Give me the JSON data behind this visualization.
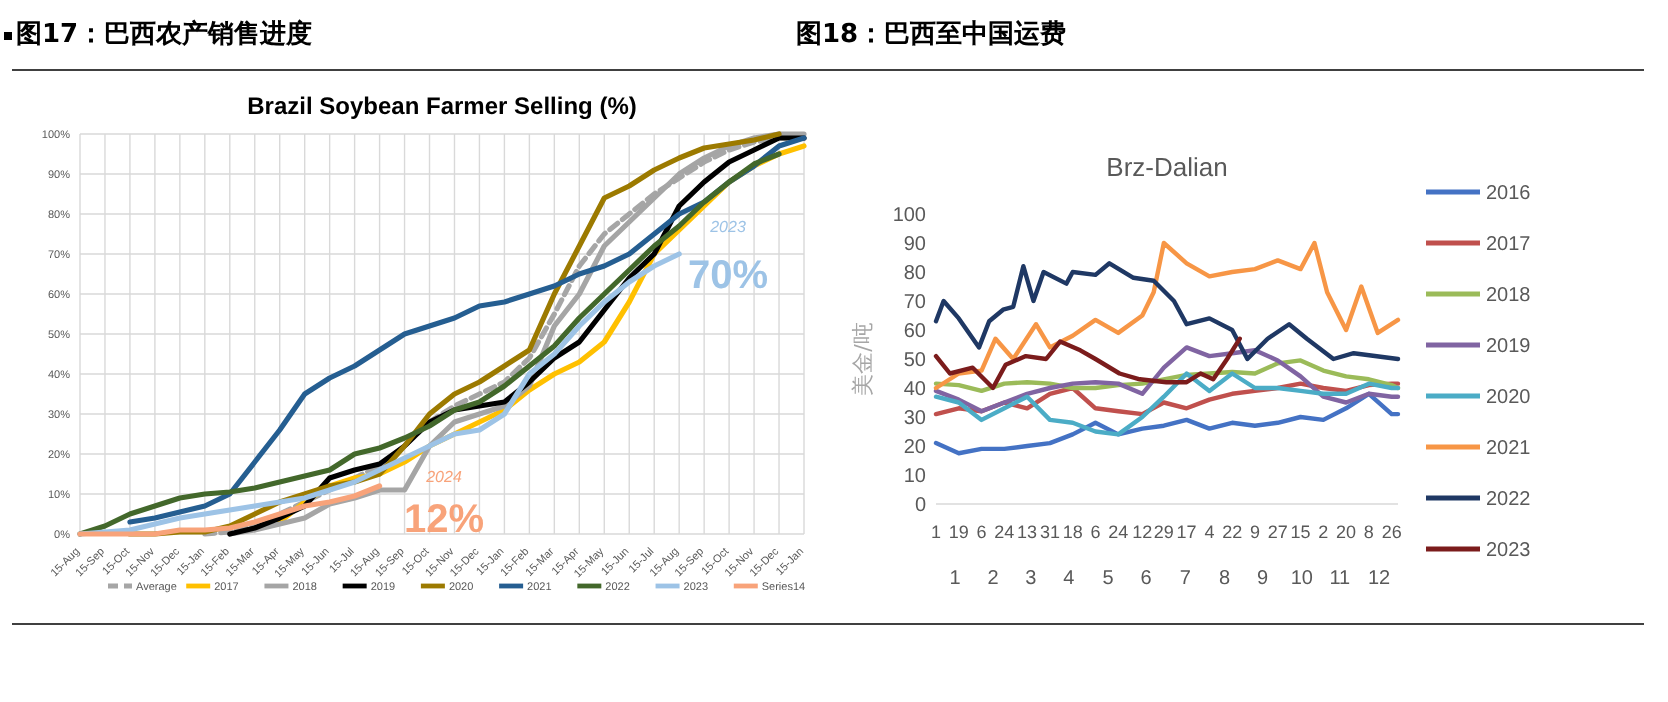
{
  "chart_data": [
    {
      "type": "line",
      "subtitle": "图17：巴西农产销售进度",
      "title": "Brazil Soybean Farmer Selling (%)",
      "categories": [
        "15-Aug",
        "15-Sep",
        "15-Oct",
        "15-Nov",
        "15-Dec",
        "15-Jan",
        "15-Feb",
        "15-Mar",
        "15-Apr",
        "15-May",
        "15-Jun",
        "15-Jul",
        "15-Aug",
        "15-Sep",
        "15-Oct",
        "15-Nov",
        "15-Dec",
        "15-Jan",
        "15-Feb",
        "15-Mar",
        "15-Apr",
        "15-May",
        "15-Jun",
        "15-Jul",
        "15-Aug",
        "15-Sep",
        "15-Oct",
        "15-Nov",
        "15-Dec",
        "15-Jan"
      ],
      "ylim": [
        0,
        100
      ],
      "yticks": [
        {
          "value": 0,
          "label": "0%"
        },
        {
          "value": 10,
          "label": "10%"
        },
        {
          "value": 20,
          "label": "20%"
        },
        {
          "value": 30,
          "label": "30%"
        },
        {
          "value": 40,
          "label": "40%"
        },
        {
          "value": 50,
          "label": "50%"
        },
        {
          "value": 60,
          "label": "60%"
        },
        {
          "value": 70,
          "label": "70%"
        },
        {
          "value": 80,
          "label": "80%"
        },
        {
          "value": 90,
          "label": "90%"
        },
        {
          "value": 100,
          "label": "100%"
        }
      ],
      "grid": true,
      "legend": "bottom",
      "series": [
        {
          "name": "Average",
          "color": "#a6a6a6",
          "line_style": "dashed",
          "values": [
            null,
            null,
            null,
            null,
            null,
            0,
            0.5,
            2,
            5,
            8,
            11,
            14,
            17,
            22,
            28,
            32,
            35,
            38,
            44,
            55,
            67,
            75,
            80,
            85,
            89,
            93,
            96,
            98,
            99,
            99
          ]
        },
        {
          "name": "2017",
          "color": "#ffc000",
          "values": [
            null,
            null,
            null,
            null,
            null,
            null,
            null,
            null,
            3,
            8,
            12,
            14,
            15,
            18,
            22,
            25,
            28,
            31,
            36,
            40,
            43,
            48,
            58,
            70,
            76,
            82,
            88,
            92,
            95,
            97
          ]
        },
        {
          "name": "2018",
          "color": "#a5a5a5",
          "values": [
            null,
            null,
            null,
            null,
            null,
            null,
            0,
            1,
            2.5,
            4,
            7.5,
            9,
            11,
            11,
            22,
            28,
            30,
            32,
            37,
            52,
            60,
            72,
            78,
            84,
            90,
            94,
            97,
            99,
            100,
            100
          ]
        },
        {
          "name": "2019",
          "color": "#000000",
          "values": [
            null,
            null,
            null,
            null,
            null,
            null,
            0,
            1.5,
            4,
            7,
            14,
            16,
            17.5,
            22,
            28,
            31,
            32,
            33,
            38,
            44,
            48,
            56,
            64,
            70,
            82,
            88,
            93,
            96,
            99,
            99
          ]
        },
        {
          "name": "2020",
          "color": "#9c7a00",
          "values": [
            null,
            null,
            0,
            0,
            0.5,
            0.5,
            2,
            5,
            8,
            10,
            12,
            13,
            15,
            22,
            30,
            35,
            38,
            42,
            46,
            60,
            72,
            84,
            87,
            91,
            94,
            96.5,
            97.5,
            98.5,
            100,
            null
          ]
        },
        {
          "name": "2021",
          "color": "#255e91",
          "values": [
            null,
            null,
            3,
            4,
            5.5,
            7,
            10,
            18,
            26,
            35,
            39,
            42,
            46,
            50,
            52,
            54,
            57,
            58,
            60,
            62,
            65,
            67,
            70,
            75,
            80,
            83,
            88,
            92,
            97,
            99
          ]
        },
        {
          "name": "2022",
          "color": "#43682b",
          "values": [
            0,
            2,
            5,
            7,
            9,
            10,
            10.5,
            11.5,
            13,
            14.5,
            16,
            20,
            21.5,
            24,
            27,
            31,
            33,
            37,
            42,
            47,
            54,
            60,
            66,
            72,
            77,
            83,
            88,
            92.5,
            95,
            null
          ]
        },
        {
          "name": "2023",
          "color": "#9dc3e6",
          "values": [
            0,
            0.5,
            1,
            2.5,
            4,
            5,
            6,
            7,
            8,
            9,
            11,
            13,
            16,
            19,
            22,
            25,
            26,
            30,
            40,
            45,
            52,
            58,
            63,
            67,
            70,
            null,
            null,
            null,
            null,
            null
          ]
        },
        {
          "name": "Series14",
          "color": "#f8a37a",
          "values": [
            0,
            0,
            0,
            0,
            1,
            1,
            1.5,
            3,
            5,
            7,
            8,
            9.5,
            12,
            null,
            null,
            null,
            null,
            null,
            null,
            null,
            null,
            null,
            null,
            null,
            null,
            null,
            null,
            null,
            null,
            null
          ]
        }
      ],
      "annotations": [
        "2023",
        "70%",
        "2024",
        "12%"
      ]
    },
    {
      "type": "line",
      "subtitle": "图18：巴西至中国运费",
      "title": "Brz-Dalian",
      "ylabel": "美金/吨",
      "xlim": [
        "--01-01",
        "--12-31"
      ],
      "ylim": [
        0,
        100
      ],
      "xticks": [
        {
          "value": "--01-01",
          "label": "1"
        },
        {
          "value": "--01-19",
          "label": "19"
        },
        {
          "value": "--02-06",
          "label": "6"
        },
        {
          "value": "--02-24",
          "label": "24"
        },
        {
          "value": "--03-13",
          "label": "13"
        },
        {
          "value": "--03-31",
          "label": "31"
        },
        {
          "value": "--04-18",
          "label": "18"
        },
        {
          "value": "--05-06",
          "label": "6"
        },
        {
          "value": "--05-24",
          "label": "24"
        },
        {
          "value": "--06-12",
          "label": "12"
        },
        {
          "value": "--06-29",
          "label": "29"
        },
        {
          "value": "--07-17",
          "label": "17"
        },
        {
          "value": "--08-04",
          "label": "4"
        },
        {
          "value": "--08-22",
          "label": "22"
        },
        {
          "value": "--09-09",
          "label": "9"
        },
        {
          "value": "--09-27",
          "label": "27"
        },
        {
          "value": "--10-15",
          "label": "15"
        },
        {
          "value": "--11-02",
          "label": "2"
        },
        {
          "value": "--11-20",
          "label": "20"
        },
        {
          "value": "--12-08",
          "label": "8"
        },
        {
          "value": "--12-26",
          "label": "26"
        }
      ],
      "x2lim": [
        "--01-01",
        "--12-31"
      ],
      "x2ticks": [
        {
          "value": "--01-16",
          "label": "1"
        },
        {
          "value": "--02-15",
          "label": "2"
        },
        {
          "value": "--03-16",
          "label": "3"
        },
        {
          "value": "--04-15",
          "label": "4"
        },
        {
          "value": "--05-16",
          "label": "5"
        },
        {
          "value": "--06-15",
          "label": "6"
        },
        {
          "value": "--07-16",
          "label": "7"
        },
        {
          "value": "--08-16",
          "label": "8"
        },
        {
          "value": "--09-15",
          "label": "9"
        },
        {
          "value": "--10-16",
          "label": "10"
        },
        {
          "value": "--11-15",
          "label": "11"
        },
        {
          "value": "--12-16",
          "label": "12"
        }
      ],
      "yticks": [
        0,
        10,
        20,
        30,
        40,
        50,
        60,
        70,
        80,
        90,
        100
      ],
      "grid": false,
      "legend": "right",
      "series": [
        {
          "name": "2016",
          "color": "#4472c4",
          "x": [
            "--01-01",
            "--01-19",
            "--02-06",
            "--02-24",
            "--03-13",
            "--03-31",
            "--04-18",
            "--05-06",
            "--05-24",
            "--06-12",
            "--06-29",
            "--07-17",
            "--08-04",
            "--08-22",
            "--09-09",
            "--09-27",
            "--10-15",
            "--11-02",
            "--11-20",
            "--12-08",
            "--12-26",
            "--12-31"
          ],
          "values": [
            21,
            17.5,
            19,
            19,
            20,
            21,
            24,
            28,
            24,
            26,
            27,
            29,
            26,
            28,
            27,
            28,
            30,
            29,
            33,
            38,
            31,
            31
          ]
        },
        {
          "name": "2017",
          "color": "#c0504d",
          "x": [
            "--01-01",
            "--01-19",
            "--02-06",
            "--02-24",
            "--03-13",
            "--03-31",
            "--04-18",
            "--05-06",
            "--05-24",
            "--06-12",
            "--06-29",
            "--07-17",
            "--08-04",
            "--08-22",
            "--09-09",
            "--09-27",
            "--10-15",
            "--11-02",
            "--11-20",
            "--12-08",
            "--12-26",
            "--12-31"
          ],
          "values": [
            31,
            33,
            32,
            35,
            33,
            38,
            40,
            33,
            32,
            31,
            35,
            33,
            36,
            38,
            39,
            40,
            41.5,
            40,
            39,
            41,
            41.5,
            41.5
          ]
        },
        {
          "name": "2018",
          "color": "#9bbb59",
          "x": [
            "--01-01",
            "--01-19",
            "--02-06",
            "--02-24",
            "--03-13",
            "--03-31",
            "--04-18",
            "--05-06",
            "--05-24",
            "--06-12",
            "--06-29",
            "--07-17",
            "--08-04",
            "--08-22",
            "--09-09",
            "--09-27",
            "--10-15",
            "--11-02",
            "--11-20",
            "--12-08",
            "--12-26",
            "--12-31"
          ],
          "values": [
            41.5,
            41,
            39,
            41.5,
            42,
            41.5,
            40,
            40,
            41,
            41.5,
            43,
            44.5,
            45,
            45.5,
            45,
            48.5,
            49.5,
            46,
            44,
            43,
            41,
            40
          ]
        },
        {
          "name": "2019",
          "color": "#8064a2",
          "x": [
            "--01-01",
            "--01-19",
            "--02-06",
            "--02-24",
            "--03-13",
            "--03-31",
            "--04-18",
            "--05-06",
            "--05-24",
            "--06-12",
            "--06-29",
            "--07-17",
            "--08-04",
            "--08-22",
            "--09-09",
            "--09-27",
            "--10-15",
            "--11-02",
            "--11-20",
            "--12-08",
            "--12-26",
            "--12-31"
          ],
          "values": [
            39,
            36,
            32,
            35,
            38,
            40,
            41.5,
            42,
            41.5,
            38,
            47,
            54,
            51,
            52,
            53,
            49.5,
            44,
            37,
            35,
            38,
            37,
            37
          ]
        },
        {
          "name": "2020",
          "color": "#4bacc6",
          "x": [
            "--01-01",
            "--01-19",
            "--02-06",
            "--02-24",
            "--03-13",
            "--03-31",
            "--04-18",
            "--05-06",
            "--05-24",
            "--06-12",
            "--06-29",
            "--07-17",
            "--08-04",
            "--08-22",
            "--09-09",
            "--09-27",
            "--10-15",
            "--11-02",
            "--11-20",
            "--12-08",
            "--12-26",
            "--12-31"
          ],
          "values": [
            37,
            35,
            29,
            33,
            37,
            29,
            28,
            25,
            24,
            30,
            37,
            45,
            39,
            45,
            40,
            40,
            39,
            38,
            38,
            41.5,
            40,
            40
          ]
        },
        {
          "name": "2021",
          "color": "#f79646",
          "x": [
            "--01-01",
            "--01-19",
            "--02-06",
            "--02-17",
            "--03-02",
            "--03-20",
            "--03-31",
            "--04-18",
            "--05-06",
            "--05-24",
            "--06-12",
            "--06-21",
            "--06-29",
            "--07-17",
            "--08-04",
            "--08-22",
            "--09-09",
            "--09-27",
            "--10-15",
            "--10-26",
            "--11-05",
            "--11-20",
            "--12-02",
            "--12-15",
            "--12-31"
          ],
          "values": [
            40,
            45,
            46,
            57,
            50,
            62,
            54,
            58,
            63.5,
            59,
            65,
            73,
            90,
            83,
            78.5,
            80,
            81,
            84,
            81,
            90,
            73,
            60,
            75,
            59,
            63.5
          ]
        },
        {
          "name": "2022",
          "color": "#1f3864",
          "x": [
            "--01-01",
            "--01-07",
            "--01-19",
            "--02-04",
            "--02-12",
            "--02-23",
            "--03-02",
            "--03-10",
            "--03-18",
            "--03-26",
            "--04-13",
            "--04-18",
            "--05-06",
            "--05-17",
            "--06-05",
            "--06-21",
            "--07-07",
            "--07-17",
            "--08-04",
            "--08-22",
            "--09-03",
            "--09-19",
            "--10-06",
            "--10-20",
            "--11-10",
            "--11-26",
            "--12-31"
          ],
          "values": [
            63,
            70,
            64,
            54,
            63,
            67,
            68,
            82,
            70,
            80,
            76,
            80,
            79,
            83,
            78,
            77,
            70,
            62,
            64,
            60,
            50,
            57,
            62,
            57,
            50,
            52,
            50
          ]
        },
        {
          "name": "2023",
          "color": "#7b1c1c",
          "x": [
            "--01-01",
            "--01-12",
            "--01-30",
            "--02-15",
            "--02-25",
            "--03-12",
            "--03-28",
            "--04-08",
            "--04-24",
            "--05-06",
            "--05-25",
            "--06-10",
            "--07-01",
            "--07-17",
            "--07-28",
            "--08-07",
            "--08-18",
            "--08-28"
          ],
          "values": [
            51,
            45,
            47,
            40,
            48,
            51,
            50,
            56,
            53,
            50,
            45,
            43,
            42,
            42,
            45,
            43,
            50,
            57
          ]
        }
      ]
    }
  ]
}
